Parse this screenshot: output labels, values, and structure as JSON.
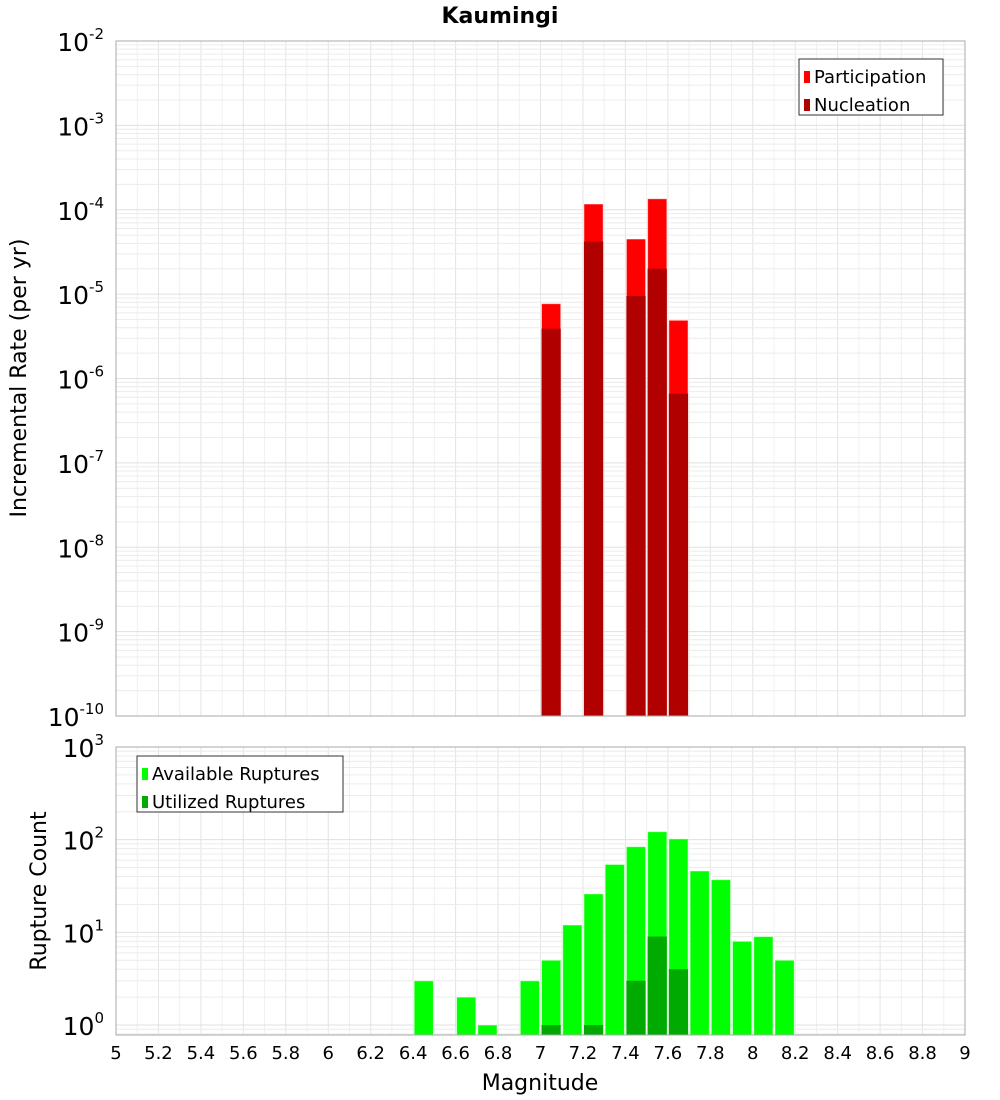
{
  "chart_data": [
    {
      "type": "bar",
      "title": "Kaumingi",
      "xlabel": "",
      "ylabel": "Incremental Rate (per yr)",
      "xlim": [
        5,
        9
      ],
      "ylim": [
        1e-10,
        0.01
      ],
      "yscale": "log",
      "grid": true,
      "legend_position": "top-right",
      "bin_width": 0.1,
      "x": [
        7.05,
        7.25,
        7.45,
        7.55,
        7.65
      ],
      "series": [
        {
          "name": "Participation",
          "color": "#ff0000",
          "values": [
            7.7e-06,
            0.000117,
            4.5e-05,
            0.000135,
            4.9e-06
          ]
        },
        {
          "name": "Nucleation",
          "color": "#b00000",
          "values": [
            3.9e-06,
            4.2e-05,
            9.5e-06,
            2e-05,
            6.6e-07
          ]
        }
      ],
      "y_ticks": [
        {
          "base": "10",
          "exp": "-10",
          "value": 1e-10
        },
        {
          "base": "10",
          "exp": "-9",
          "value": 1e-09
        },
        {
          "base": "10",
          "exp": "-8",
          "value": 1e-08
        },
        {
          "base": "10",
          "exp": "-7",
          "value": 1e-07
        },
        {
          "base": "10",
          "exp": "-6",
          "value": 1e-06
        },
        {
          "base": "10",
          "exp": "-5",
          "value": 1e-05
        },
        {
          "base": "10",
          "exp": "-4",
          "value": 0.0001
        },
        {
          "base": "10",
          "exp": "-3",
          "value": 0.001
        },
        {
          "base": "10",
          "exp": "-2",
          "value": 0.01
        }
      ]
    },
    {
      "type": "bar",
      "title": "",
      "xlabel": "Magnitude",
      "ylabel": "Rupture Count",
      "xlim": [
        5,
        9
      ],
      "ylim": [
        0.78,
        1000
      ],
      "yscale": "log",
      "grid": true,
      "legend_position": "top-left",
      "bin_width": 0.1,
      "x": [
        6.45,
        6.65,
        6.75,
        6.95,
        7.05,
        7.15,
        7.25,
        7.35,
        7.45,
        7.55,
        7.65,
        7.75,
        7.85,
        7.95,
        8.05,
        8.15
      ],
      "series": [
        {
          "name": "Available Ruptures",
          "color": "#00ff00",
          "values": [
            3,
            2,
            1,
            3,
            5,
            12,
            26,
            54,
            84,
            122,
            102,
            46,
            37,
            8,
            9,
            5
          ]
        },
        {
          "name": "Utilized Ruptures",
          "color": "#00aa00",
          "values": [
            0,
            0,
            0,
            0,
            1,
            0,
            1,
            0,
            3,
            9,
            4,
            0,
            0,
            0,
            0,
            0
          ]
        }
      ],
      "y_ticks": [
        {
          "base": "10",
          "exp": "0",
          "value": 1
        },
        {
          "base": "10",
          "exp": "1",
          "value": 10
        },
        {
          "base": "10",
          "exp": "2",
          "value": 100
        },
        {
          "base": "10",
          "exp": "3",
          "value": 1000
        }
      ],
      "x_ticks": [
        "5",
        "5.2",
        "5.4",
        "5.6",
        "5.8",
        "6",
        "6.2",
        "6.4",
        "6.6",
        "6.8",
        "7",
        "7.2",
        "7.4",
        "7.6",
        "7.8",
        "8",
        "8.2",
        "8.4",
        "8.6",
        "8.8",
        "9"
      ]
    }
  ]
}
